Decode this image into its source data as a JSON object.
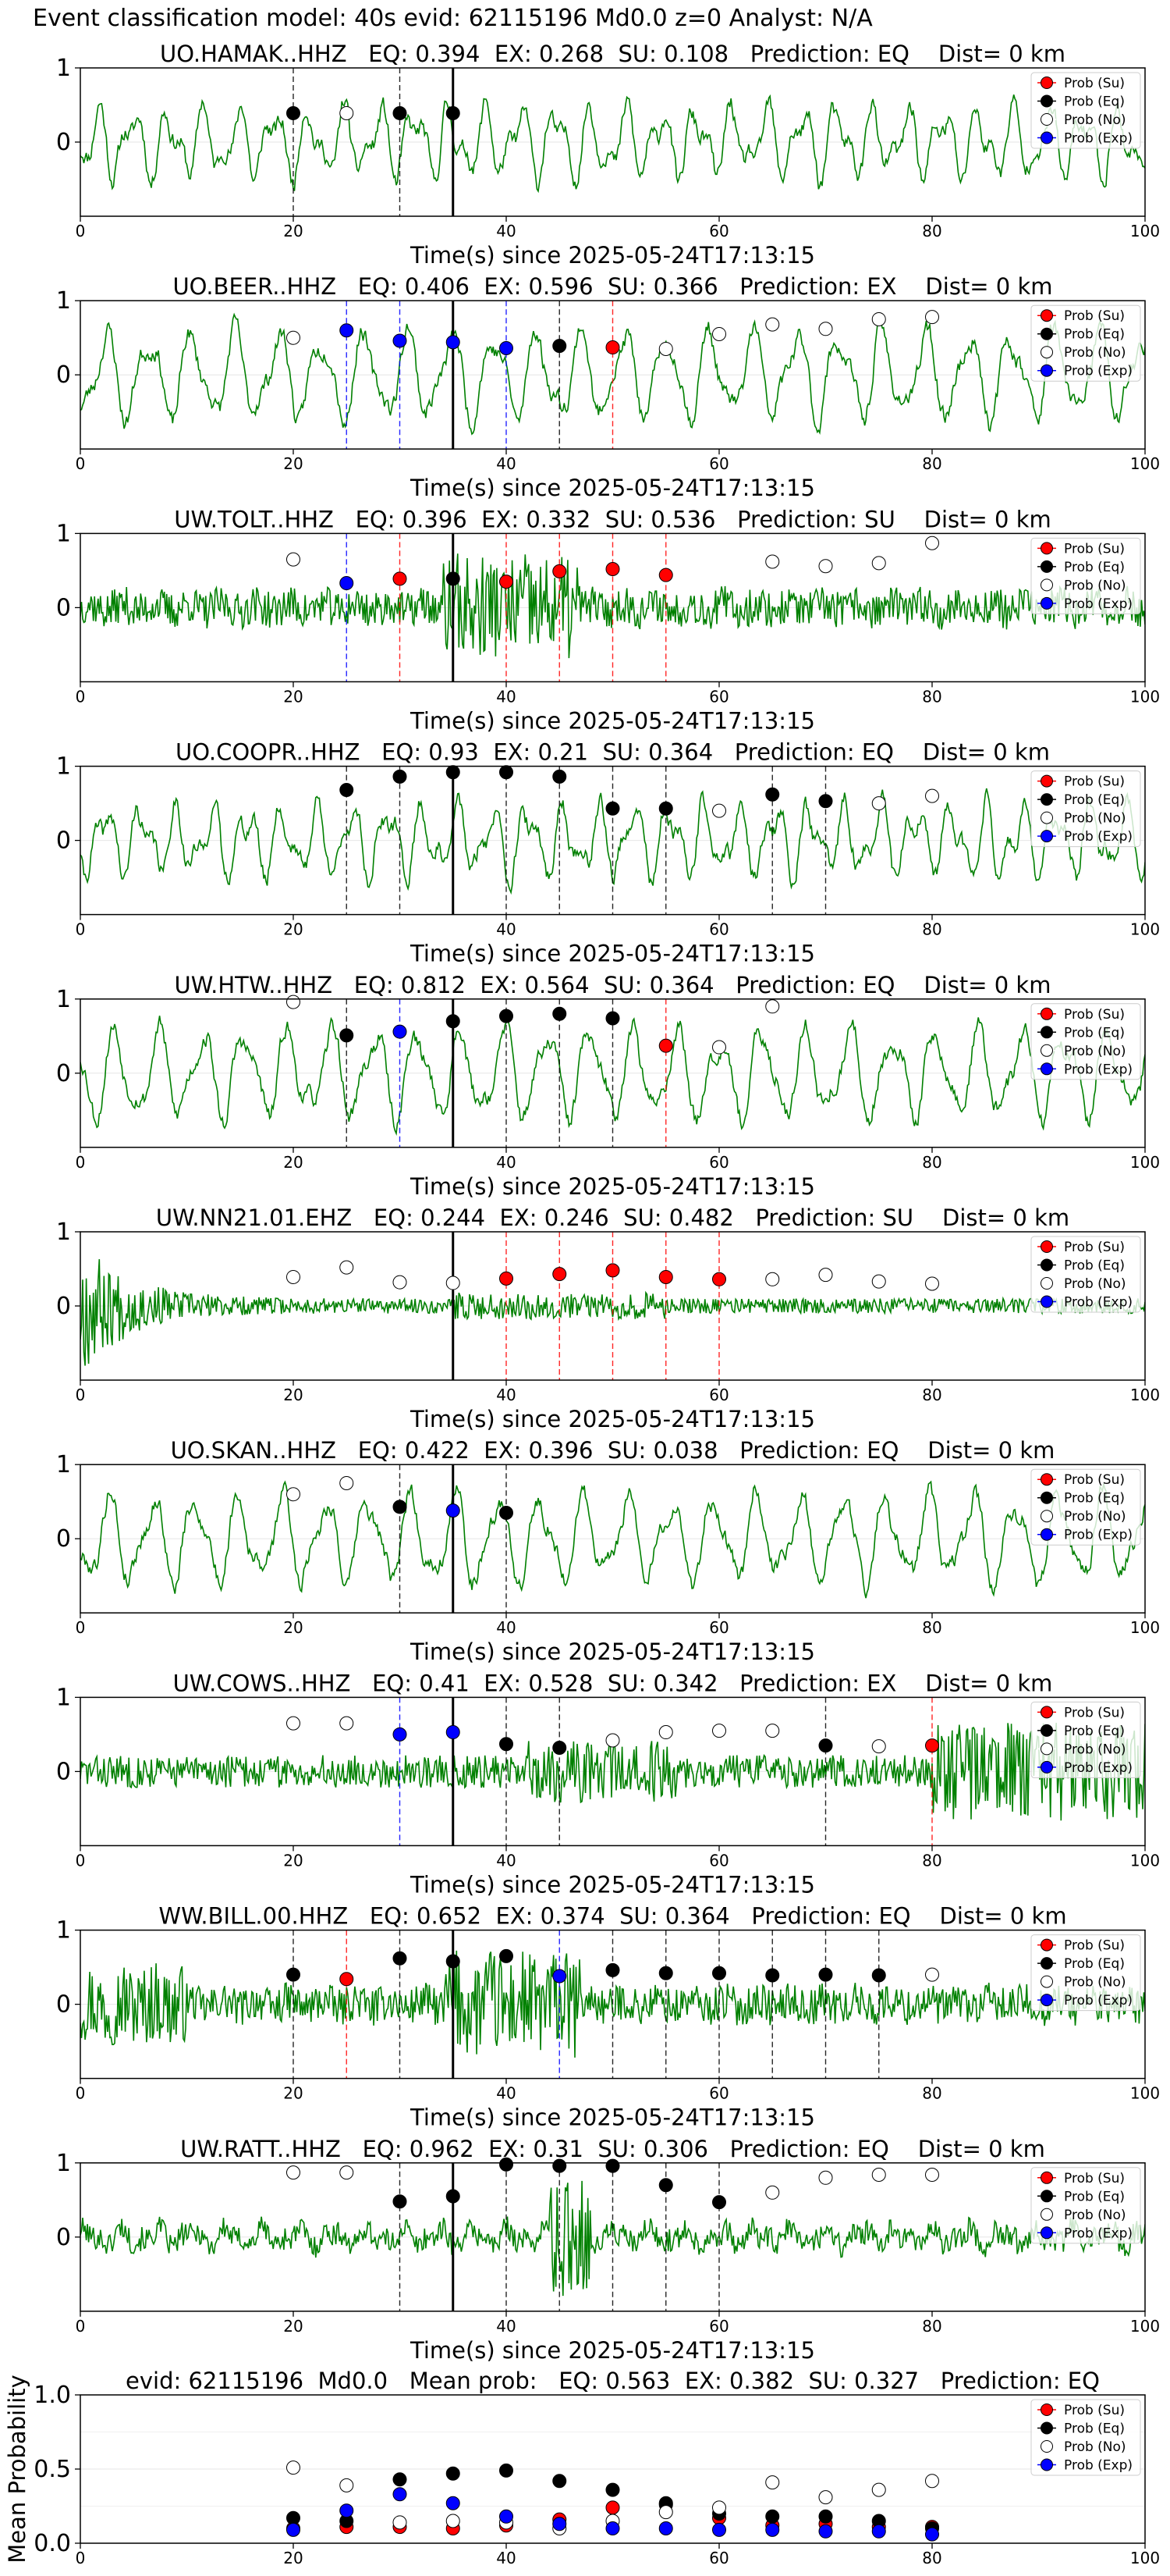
{
  "suptitle": "Event classification model: 40s evid: 62115196 Md0.0 z=0 Analyst: N/A",
  "legend_labels": [
    "Prob (Su)",
    "Prob (Eq)",
    "Prob (No)",
    "Prob (Exp)"
  ],
  "colors": {
    "su": "#ff0000",
    "eq": "#000000",
    "no": "#ffffff",
    "exp": "#0000ff",
    "trace": "#008000",
    "grid": "#e6e6e6",
    "pick": "#000000"
  },
  "chart_data": [
    {
      "type": "line",
      "title": "UO.HAMAK..HHZ   EQ: 0.394  EX: 0.268  SU: 0.108   Prediction: EQ    Dist= 0 km",
      "xlabel": "Time(s) since 2025-05-24T17:13:15",
      "xlim": [
        0,
        100
      ],
      "ylim": [
        -1,
        1
      ],
      "xticks": [
        0,
        20,
        40,
        60,
        80,
        100
      ],
      "yticks": [
        0,
        1
      ],
      "pick_time": 35,
      "trace": {
        "style": "low",
        "seed": 11
      },
      "series": [
        {
          "name": "Prob (Eq)",
          "x": [
            20,
            30,
            35
          ],
          "y": [
            0.39,
            0.39,
            0.39
          ]
        },
        {
          "name": "Prob (No)",
          "x": [
            25
          ],
          "y": [
            0.39
          ]
        }
      ],
      "vlines": [
        {
          "x": 20,
          "color": "eq"
        },
        {
          "x": 30,
          "color": "eq"
        }
      ]
    },
    {
      "type": "line",
      "title": "UO.BEER..HHZ   EQ: 0.406  EX: 0.596  SU: 0.366   Prediction: EX    Dist= 0 km",
      "xlabel": "Time(s) since 2025-05-24T17:13:15",
      "xlim": [
        0,
        100
      ],
      "ylim": [
        -1,
        1
      ],
      "xticks": [
        0,
        20,
        40,
        60,
        80,
        100
      ],
      "yticks": [
        0,
        1
      ],
      "pick_time": 35,
      "trace": {
        "style": "wave",
        "seed": 23
      },
      "series": [
        {
          "name": "Prob (No)",
          "x": [
            20,
            55,
            60,
            65,
            70,
            75,
            80
          ],
          "y": [
            0.5,
            0.35,
            0.55,
            0.68,
            0.62,
            0.75,
            0.78
          ]
        },
        {
          "name": "Prob (Exp)",
          "x": [
            25,
            30,
            35,
            40
          ],
          "y": [
            0.6,
            0.46,
            0.44,
            0.36
          ]
        },
        {
          "name": "Prob (Eq)",
          "x": [
            45
          ],
          "y": [
            0.39
          ]
        },
        {
          "name": "Prob (Su)",
          "x": [
            50
          ],
          "y": [
            0.37
          ]
        }
      ],
      "vlines": [
        {
          "x": 25,
          "color": "exp"
        },
        {
          "x": 30,
          "color": "exp"
        },
        {
          "x": 40,
          "color": "exp"
        },
        {
          "x": 45,
          "color": "eq"
        },
        {
          "x": 50,
          "color": "su"
        }
      ]
    },
    {
      "type": "line",
      "title": "UW.TOLT..HHZ   EQ: 0.396  EX: 0.332  SU: 0.536   Prediction: SU    Dist= 0 km",
      "xlabel": "Time(s) since 2025-05-24T17:13:15",
      "xlim": [
        0,
        100
      ],
      "ylim": [
        -1,
        1
      ],
      "xticks": [
        0,
        20,
        40,
        60,
        80,
        100
      ],
      "yticks": [
        0,
        1
      ],
      "pick_time": 35,
      "trace": {
        "style": "noise",
        "seed": 37
      },
      "series": [
        {
          "name": "Prob (No)",
          "x": [
            20,
            65,
            70,
            75,
            80
          ],
          "y": [
            0.65,
            0.62,
            0.56,
            0.6,
            0.87
          ]
        },
        {
          "name": "Prob (Exp)",
          "x": [
            25
          ],
          "y": [
            0.33
          ]
        },
        {
          "name": "Prob (Su)",
          "x": [
            30,
            40,
            45,
            50,
            55
          ],
          "y": [
            0.39,
            0.35,
            0.49,
            0.52,
            0.44
          ]
        },
        {
          "name": "Prob (Eq)",
          "x": [
            35
          ],
          "y": [
            0.39
          ]
        }
      ],
      "vlines": [
        {
          "x": 25,
          "color": "exp"
        },
        {
          "x": 30,
          "color": "su"
        },
        {
          "x": 40,
          "color": "su"
        },
        {
          "x": 45,
          "color": "su"
        },
        {
          "x": 50,
          "color": "su"
        },
        {
          "x": 55,
          "color": "su"
        }
      ]
    },
    {
      "type": "line",
      "title": "UO.COOPR..HHZ   EQ: 0.93  EX: 0.21  SU: 0.364   Prediction: EQ    Dist= 0 km",
      "xlabel": "Time(s) since 2025-05-24T17:13:15",
      "xlim": [
        0,
        100
      ],
      "ylim": [
        -1,
        1
      ],
      "xticks": [
        0,
        20,
        40,
        60,
        80,
        100
      ],
      "yticks": [
        0,
        1
      ],
      "pick_time": 35,
      "trace": {
        "style": "low",
        "seed": 41
      },
      "series": [
        {
          "name": "Prob (Eq)",
          "x": [
            25,
            30,
            35,
            40,
            45,
            50,
            55,
            65,
            70
          ],
          "y": [
            0.68,
            0.86,
            0.92,
            0.92,
            0.86,
            0.43,
            0.43,
            0.62,
            0.53
          ]
        },
        {
          "name": "Prob (No)",
          "x": [
            60,
            75,
            80
          ],
          "y": [
            0.4,
            0.5,
            0.6
          ]
        }
      ],
      "vlines": [
        {
          "x": 25,
          "color": "eq"
        },
        {
          "x": 30,
          "color": "eq"
        },
        {
          "x": 40,
          "color": "eq"
        },
        {
          "x": 45,
          "color": "eq"
        },
        {
          "x": 50,
          "color": "eq"
        },
        {
          "x": 55,
          "color": "eq"
        },
        {
          "x": 65,
          "color": "eq"
        },
        {
          "x": 70,
          "color": "eq"
        }
      ]
    },
    {
      "type": "line",
      "title": "UW.HTW..HHZ   EQ: 0.812  EX: 0.564  SU: 0.364   Prediction: EQ    Dist= 0 km",
      "xlabel": "Time(s) since 2025-05-24T17:13:15",
      "xlim": [
        0,
        100
      ],
      "ylim": [
        -1,
        1
      ],
      "xticks": [
        0,
        20,
        40,
        60,
        80,
        100
      ],
      "yticks": [
        0,
        1
      ],
      "pick_time": 35,
      "trace": {
        "style": "wave",
        "seed": 53
      },
      "series": [
        {
          "name": "Prob (No)",
          "x": [
            20,
            60,
            65
          ],
          "y": [
            0.96,
            0.35,
            0.9
          ]
        },
        {
          "name": "Prob (Eq)",
          "x": [
            25,
            35,
            40,
            45,
            50
          ],
          "y": [
            0.51,
            0.7,
            0.77,
            0.8,
            0.74
          ]
        },
        {
          "name": "Prob (Exp)",
          "x": [
            30
          ],
          "y": [
            0.56
          ]
        },
        {
          "name": "Prob (Su)",
          "x": [
            55
          ],
          "y": [
            0.37
          ]
        }
      ],
      "vlines": [
        {
          "x": 25,
          "color": "eq"
        },
        {
          "x": 30,
          "color": "exp"
        },
        {
          "x": 40,
          "color": "eq"
        },
        {
          "x": 45,
          "color": "eq"
        },
        {
          "x": 50,
          "color": "eq"
        },
        {
          "x": 55,
          "color": "su"
        }
      ]
    },
    {
      "type": "line",
      "title": "UW.NN21.01.EHZ   EQ: 0.244  EX: 0.246  SU: 0.482   Prediction: SU    Dist= 0 km",
      "xlabel": "Time(s) since 2025-05-24T17:13:15",
      "xlim": [
        0,
        100
      ],
      "ylim": [
        -1,
        1
      ],
      "xticks": [
        0,
        20,
        40,
        60,
        80,
        100
      ],
      "yticks": [
        0,
        1
      ],
      "pick_time": 35,
      "trace": {
        "style": "decay",
        "seed": 67
      },
      "series": [
        {
          "name": "Prob (No)",
          "x": [
            20,
            25,
            30,
            35,
            65,
            70,
            75,
            80
          ],
          "y": [
            0.39,
            0.52,
            0.32,
            0.31,
            0.36,
            0.42,
            0.33,
            0.3
          ]
        },
        {
          "name": "Prob (Su)",
          "x": [
            40,
            45,
            50,
            55,
            60
          ],
          "y": [
            0.37,
            0.43,
            0.48,
            0.39,
            0.36
          ]
        }
      ],
      "vlines": [
        {
          "x": 40,
          "color": "su"
        },
        {
          "x": 45,
          "color": "su"
        },
        {
          "x": 50,
          "color": "su"
        },
        {
          "x": 55,
          "color": "su"
        },
        {
          "x": 60,
          "color": "su"
        }
      ]
    },
    {
      "type": "line",
      "title": "UO.SKAN..HHZ   EQ: 0.422  EX: 0.396  SU: 0.038   Prediction: EQ    Dist= 0 km",
      "xlabel": "Time(s) since 2025-05-24T17:13:15",
      "xlim": [
        0,
        100
      ],
      "ylim": [
        -1,
        1
      ],
      "xticks": [
        0,
        20,
        40,
        60,
        80,
        100
      ],
      "yticks": [
        0,
        1
      ],
      "pick_time": 35,
      "trace": {
        "style": "wave",
        "seed": 79
      },
      "series": [
        {
          "name": "Prob (No)",
          "x": [
            20,
            25
          ],
          "y": [
            0.6,
            0.75
          ]
        },
        {
          "name": "Prob (Eq)",
          "x": [
            30,
            40
          ],
          "y": [
            0.43,
            0.35
          ]
        },
        {
          "name": "Prob (Exp)",
          "x": [
            35
          ],
          "y": [
            0.38
          ]
        }
      ],
      "vlines": [
        {
          "x": 30,
          "color": "eq"
        },
        {
          "x": 40,
          "color": "eq"
        }
      ]
    },
    {
      "type": "line",
      "title": "UW.COWS..HHZ   EQ: 0.41  EX: 0.528  SU: 0.342   Prediction: EX    Dist= 0 km",
      "xlabel": "Time(s) since 2025-05-24T17:13:15",
      "xlim": [
        0,
        100
      ],
      "ylim": [
        -1,
        1
      ],
      "xticks": [
        0,
        20,
        40,
        60,
        80,
        100
      ],
      "yticks": [
        0,
        1
      ],
      "pick_time": 35,
      "trace": {
        "style": "noise_tail",
        "seed": 83
      },
      "series": [
        {
          "name": "Prob (No)",
          "x": [
            20,
            25,
            50,
            55,
            60,
            65,
            75
          ],
          "y": [
            0.65,
            0.65,
            0.42,
            0.53,
            0.55,
            0.55,
            0.34
          ]
        },
        {
          "name": "Prob (Exp)",
          "x": [
            30,
            35
          ],
          "y": [
            0.5,
            0.53
          ]
        },
        {
          "name": "Prob (Eq)",
          "x": [
            40,
            45,
            70
          ],
          "y": [
            0.37,
            0.32,
            0.35
          ]
        },
        {
          "name": "Prob (Su)",
          "x": [
            80
          ],
          "y": [
            0.35
          ]
        }
      ],
      "vlines": [
        {
          "x": 30,
          "color": "exp"
        },
        {
          "x": 40,
          "color": "eq"
        },
        {
          "x": 45,
          "color": "eq"
        },
        {
          "x": 70,
          "color": "eq"
        },
        {
          "x": 80,
          "color": "su"
        }
      ]
    },
    {
      "type": "line",
      "title": "WW.BILL.00.HHZ   EQ: 0.652  EX: 0.374  SU: 0.364   Prediction: EQ    Dist= 0 km",
      "xlabel": "Time(s) since 2025-05-24T17:13:15",
      "xlim": [
        0,
        100
      ],
      "ylim": [
        -1,
        1
      ],
      "xticks": [
        0,
        20,
        40,
        60,
        80,
        100
      ],
      "yticks": [
        0,
        1
      ],
      "pick_time": 35,
      "trace": {
        "style": "noise",
        "seed": 97
      },
      "series": [
        {
          "name": "Prob (Eq)",
          "x": [
            20,
            30,
            35,
            40,
            50,
            55,
            60,
            65,
            70,
            75
          ],
          "y": [
            0.4,
            0.62,
            0.58,
            0.65,
            0.46,
            0.42,
            0.42,
            0.39,
            0.4,
            0.39
          ]
        },
        {
          "name": "Prob (Su)",
          "x": [
            25
          ],
          "y": [
            0.34
          ]
        },
        {
          "name": "Prob (Exp)",
          "x": [
            45
          ],
          "y": [
            0.38
          ]
        },
        {
          "name": "Prob (No)",
          "x": [
            80
          ],
          "y": [
            0.4
          ]
        }
      ],
      "vlines": [
        {
          "x": 20,
          "color": "eq"
        },
        {
          "x": 25,
          "color": "su"
        },
        {
          "x": 30,
          "color": "eq"
        },
        {
          "x": 45,
          "color": "exp"
        },
        {
          "x": 50,
          "color": "eq"
        },
        {
          "x": 55,
          "color": "eq"
        },
        {
          "x": 60,
          "color": "eq"
        },
        {
          "x": 65,
          "color": "eq"
        },
        {
          "x": 70,
          "color": "eq"
        },
        {
          "x": 75,
          "color": "eq"
        }
      ]
    },
    {
      "type": "line",
      "title": "UW.RATT..HHZ   EQ: 0.962  EX: 0.31  SU: 0.306   Prediction: EQ    Dist= 0 km",
      "xlabel": "Time(s) since 2025-05-24T17:13:15",
      "xlim": [
        0,
        100
      ],
      "ylim": [
        -1,
        1
      ],
      "xticks": [
        0,
        20,
        40,
        60,
        80,
        100
      ],
      "yticks": [
        0,
        1
      ],
      "pick_time": 35,
      "trace": {
        "style": "low_burst",
        "seed": 101
      },
      "series": [
        {
          "name": "Prob (No)",
          "x": [
            20,
            25,
            65,
            70,
            75,
            80
          ],
          "y": [
            0.87,
            0.87,
            0.6,
            0.8,
            0.84,
            0.84
          ]
        },
        {
          "name": "Prob (Eq)",
          "x": [
            30,
            35,
            40,
            45,
            50,
            55,
            60
          ],
          "y": [
            0.48,
            0.55,
            0.98,
            0.96,
            0.96,
            0.7,
            0.47
          ]
        }
      ],
      "vlines": [
        {
          "x": 30,
          "color": "eq"
        },
        {
          "x": 40,
          "color": "eq"
        },
        {
          "x": 45,
          "color": "eq"
        },
        {
          "x": 50,
          "color": "eq"
        },
        {
          "x": 55,
          "color": "eq"
        },
        {
          "x": 60,
          "color": "eq"
        }
      ]
    },
    {
      "type": "scatter",
      "title": "evid: 62115196  Md0.0   Mean prob:   EQ: 0.563  EX: 0.382  SU: 0.327   Prediction: EQ",
      "xlabel": "",
      "ylabel": "Mean Probability",
      "xlim": [
        0,
        100
      ],
      "ylim": [
        0,
        1
      ],
      "xticks": [
        0,
        20,
        40,
        60,
        80,
        100
      ],
      "yticks": [
        0.0,
        0.5,
        1.0
      ],
      "ytick_labels": [
        "0.0",
        "0.5",
        "1.0"
      ],
      "series": [
        {
          "name": "Prob (Su)",
          "x": [
            20,
            25,
            30,
            35,
            40,
            45,
            50,
            55,
            60,
            65,
            70,
            75,
            80
          ],
          "y": [
            0.1,
            0.11,
            0.11,
            0.1,
            0.12,
            0.16,
            0.24,
            0.26,
            0.17,
            0.12,
            0.13,
            0.11,
            0.11
          ]
        },
        {
          "name": "Prob (Eq)",
          "x": [
            20,
            25,
            30,
            35,
            40,
            45,
            50,
            55,
            60,
            65,
            70,
            75,
            80
          ],
          "y": [
            0.17,
            0.15,
            0.43,
            0.47,
            0.49,
            0.42,
            0.36,
            0.27,
            0.2,
            0.18,
            0.18,
            0.15,
            0.1
          ]
        },
        {
          "name": "Prob (No)",
          "x": [
            20,
            25,
            30,
            35,
            40,
            45,
            50,
            55,
            60,
            65,
            70,
            75,
            80
          ],
          "y": [
            0.51,
            0.39,
            0.14,
            0.15,
            0.14,
            0.1,
            0.15,
            0.21,
            0.24,
            0.41,
            0.31,
            0.36,
            0.42
          ]
        },
        {
          "name": "Prob (Exp)",
          "x": [
            20,
            25,
            30,
            35,
            40,
            45,
            50,
            55,
            60,
            65,
            70,
            75,
            80
          ],
          "y": [
            0.09,
            0.22,
            0.33,
            0.27,
            0.18,
            0.13,
            0.1,
            0.1,
            0.09,
            0.09,
            0.08,
            0.08,
            0.06
          ]
        }
      ]
    }
  ]
}
